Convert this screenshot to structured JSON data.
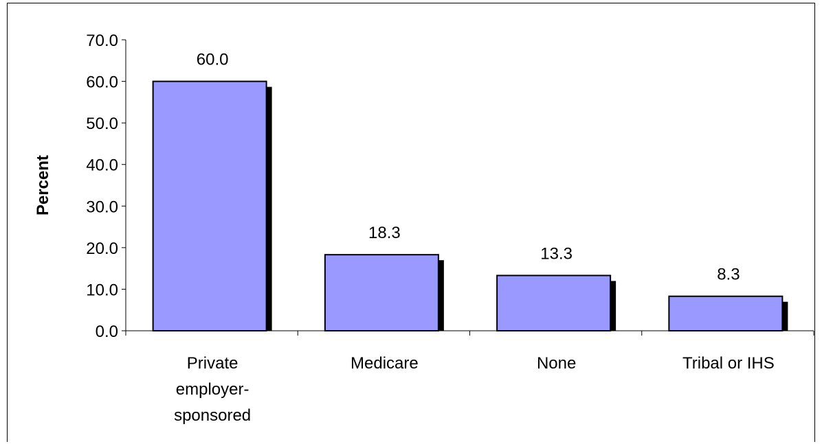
{
  "chart_data": {
    "type": "bar",
    "title": "",
    "xlabel": "",
    "ylabel": "Percent",
    "ylim": [
      0,
      70
    ],
    "yticks": [
      "0.0",
      "10.0",
      "20.0",
      "30.0",
      "40.0",
      "50.0",
      "60.0",
      "70.0"
    ],
    "categories": [
      [
        "Private",
        "employer-",
        "sponsored"
      ],
      [
        "Medicare"
      ],
      [
        "None"
      ],
      [
        "Tribal or IHS"
      ]
    ],
    "values": [
      60.0,
      18.3,
      13.3,
      8.3
    ],
    "value_labels": [
      "60.0",
      "18.3",
      "13.3",
      "8.3"
    ],
    "grid": false,
    "legend": "none",
    "bar_color": "#9999ff",
    "shadow_color": "#000000"
  }
}
